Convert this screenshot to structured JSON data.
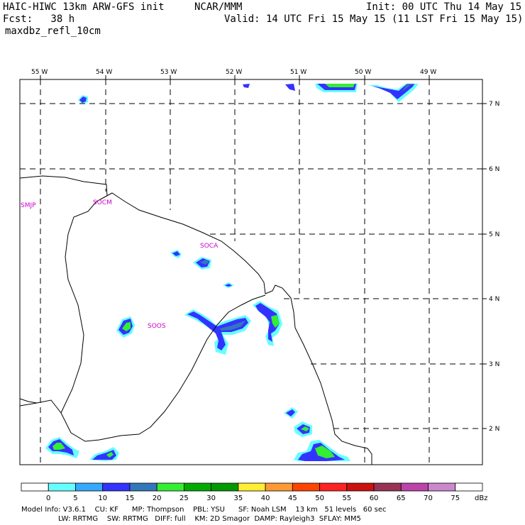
{
  "header": {
    "model_title": "HAIC-HIWC 13km ARW-GFS init",
    "org": "NCAR/MMM",
    "init": "Init: 00 UTC Thu 14 May 15",
    "fcst": "Fcst:   38 h",
    "valid": "Valid: 14 UTC Fri 15 May 15 (11 LST Fri 15 May 15)",
    "field": "maxdbz_refl_10cm"
  },
  "map": {
    "lon_labels": [
      "55 W",
      "54 W",
      "53 W",
      "52 W",
      "51 W",
      "50 W",
      "49 W"
    ],
    "lat_labels": [
      "7 N",
      "6 N",
      "5 N",
      "4 N",
      "3 N",
      "2 N"
    ],
    "stations": [
      "SMJP",
      "SOCM",
      "SOCA",
      "SOOS"
    ]
  },
  "colorbar": {
    "labels": [
      "0",
      "5",
      "10",
      "15",
      "20",
      "25",
      "30",
      "35",
      "40",
      "45",
      "50",
      "55",
      "60",
      "65",
      "70",
      "75"
    ],
    "unit": "dBz",
    "colors": [
      "#ffffff",
      "#66ffff",
      "#33aaff",
      "#3333ff",
      "#3377bb",
      "#33ee33",
      "#00aa00",
      "#009900",
      "#ffee33",
      "#ff9933",
      "#ff4400",
      "#ff2222",
      "#cc1111",
      "#993355",
      "#bb44aa",
      "#cc88cc",
      "#ffffff"
    ]
  },
  "footer": {
    "line1": "Model Info: V3.6.1    CU: KF      MP: Thompson    PBL: YSU      SF: Noah LSM    13 km   51 levels   60 sec",
    "line2": "LW: RRTMG    SW: RRTMG   DIFF: full    KM: 2D Smagor  DAMP: Rayleigh3  SFLAY: MM5"
  },
  "chart_data": {
    "type": "heatmap",
    "field": "maxdbz_refl_10cm",
    "unit": "dBz",
    "lon_range": [
      -55.3,
      -48.3
    ],
    "lat_range": [
      1.5,
      7.3
    ],
    "value_levels": [
      0,
      5,
      10,
      15,
      20,
      25,
      30,
      35,
      40,
      45,
      50,
      55,
      60,
      65,
      70,
      75
    ],
    "max_observed_dbz": 30
  }
}
